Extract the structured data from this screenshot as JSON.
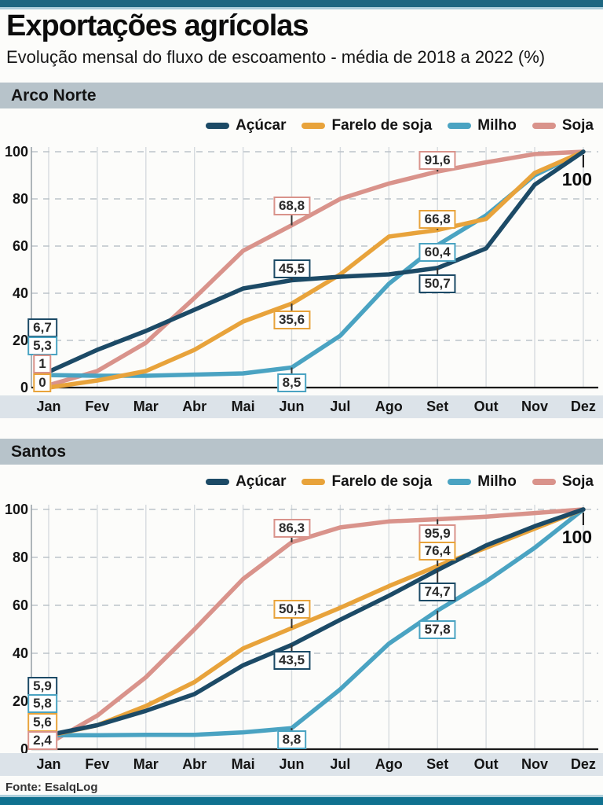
{
  "page": {
    "title": "Exportações agrícolas",
    "subtitle": "Evolução mensal do fluxo de escoamento - média de 2018 a 2022 (%)",
    "source": "Fonte: EsalqLog"
  },
  "colors": {
    "acucar": "#1c4a66",
    "farelo": "#e8a33b",
    "milho": "#4aa3c2",
    "soja": "#d9938b",
    "section_band": "#b7c3ca",
    "axis_band": "#dce3e9",
    "top_bar": "#1e6781",
    "accent_light": "#aecfdb",
    "bottom_bar": "#10718f",
    "grid_v": "#d6dbdf",
    "grid_h": "#bcc3c9",
    "baseline": "#1a1a1a"
  },
  "legend": [
    {
      "key": "acucar",
      "label": "Açúcar"
    },
    {
      "key": "farelo",
      "label": "Farelo de soja"
    },
    {
      "key": "milho",
      "label": "Milho"
    },
    {
      "key": "soja",
      "label": "Soja"
    }
  ],
  "y_ticks": [
    0,
    20,
    40,
    60,
    80,
    100
  ],
  "months": [
    "Jan",
    "Fev",
    "Mar",
    "Abr",
    "Mai",
    "Jun",
    "Jul",
    "Ago",
    "Set",
    "Out",
    "Nov",
    "Dez"
  ],
  "chart_data": [
    {
      "type": "line",
      "title": "Arco Norte",
      "categories": [
        "Jan",
        "Fev",
        "Mar",
        "Abr",
        "Mai",
        "Jun",
        "Jul",
        "Ago",
        "Set",
        "Out",
        "Nov",
        "Dez"
      ],
      "ylim": [
        0,
        100
      ],
      "grid": true,
      "legend_position": "top-right",
      "series": [
        {
          "key": "acucar",
          "name": "Açúcar",
          "values": [
            6.7,
            16,
            24,
            33,
            42,
            45.5,
            47,
            48,
            50.7,
            59,
            86,
            100
          ]
        },
        {
          "key": "farelo",
          "name": "Farelo de soja",
          "values": [
            0,
            3,
            7,
            16,
            28,
            35.6,
            48,
            64,
            66.8,
            71.5,
            91,
            100
          ]
        },
        {
          "key": "milho",
          "name": "Milho",
          "values": [
            5.3,
            5,
            5,
            5.5,
            6,
            8.5,
            22,
            44,
            60.4,
            73,
            90,
            100
          ]
        },
        {
          "key": "soja",
          "name": "Soja",
          "values": [
            1,
            7,
            19,
            38,
            58,
            68.8,
            80,
            86.5,
            91.6,
            95.5,
            99,
            100
          ]
        }
      ],
      "annotations": [
        {
          "text": "6,7",
          "series": "acucar",
          "month": 0,
          "box_v": 25.3,
          "dx": -8
        },
        {
          "text": "5,3",
          "series": "milho",
          "month": 0,
          "box_v": 17.7,
          "dx": -8
        },
        {
          "text": "1",
          "series": "soja",
          "month": 0,
          "box_v": 10,
          "dx": -8
        },
        {
          "text": "0",
          "series": "farelo",
          "month": 0,
          "box_v": 2,
          "dx": -8
        },
        {
          "text": "68,8",
          "series": "soja",
          "month": 5,
          "box_v": 77,
          "anchor_v": 68.8
        },
        {
          "text": "45,5",
          "series": "acucar",
          "month": 5,
          "box_v": 50.3,
          "anchor_v": 45.5
        },
        {
          "text": "35,6",
          "series": "farelo",
          "month": 5,
          "box_v": 28.7,
          "anchor_v": 35.6
        },
        {
          "text": "8,5",
          "series": "milho",
          "month": 5,
          "box_v": 2,
          "anchor_v": 8.5
        },
        {
          "text": "91,6",
          "series": "soja",
          "month": 8,
          "box_v": 96.3,
          "anchor_v": 91.6
        },
        {
          "text": "66,8",
          "series": "farelo",
          "month": 8,
          "box_v": 71.5,
          "anchor_v": 66.8
        },
        {
          "text": "60,4",
          "series": "milho",
          "month": 8,
          "box_v": 57.5,
          "anchor_v": 60.4
        },
        {
          "text": "50,7",
          "series": "acucar",
          "month": 8,
          "box_v": 44,
          "anchor_v": 50.7
        }
      ],
      "end_label": "100"
    },
    {
      "type": "line",
      "title": "Santos",
      "categories": [
        "Jan",
        "Fev",
        "Mar",
        "Abr",
        "Mai",
        "Jun",
        "Jul",
        "Ago",
        "Set",
        "Out",
        "Nov",
        "Dez"
      ],
      "ylim": [
        0,
        100
      ],
      "grid": true,
      "legend_position": "top-right",
      "series": [
        {
          "key": "acucar",
          "name": "Açúcar",
          "values": [
            5.9,
            10,
            16,
            23,
            35,
            43.5,
            54,
            64,
            74.7,
            85,
            93,
            100
          ]
        },
        {
          "key": "farelo",
          "name": "Farelo de soja",
          "values": [
            5.6,
            10,
            18,
            28,
            42,
            50.5,
            59,
            68,
            76.4,
            84,
            92,
            100
          ]
        },
        {
          "key": "milho",
          "name": "Milho",
          "values": [
            5.8,
            5.8,
            6,
            6,
            7,
            8.8,
            25,
            44,
            57.8,
            70,
            84,
            100
          ]
        },
        {
          "key": "soja",
          "name": "Soja",
          "values": [
            2.4,
            14,
            30,
            50,
            71,
            86.3,
            92.5,
            95,
            95.9,
            97,
            98.5,
            100
          ]
        }
      ],
      "annotations": [
        {
          "text": "5,9",
          "series": "acucar",
          "month": 0,
          "box_v": 26.2,
          "dx": -8
        },
        {
          "text": "5,8",
          "series": "milho",
          "month": 0,
          "box_v": 19,
          "dx": -8
        },
        {
          "text": "5,6",
          "series": "farelo",
          "month": 0,
          "box_v": 11.1,
          "dx": -8
        },
        {
          "text": "2,4",
          "series": "soja",
          "month": 0,
          "box_v": 3.6,
          "dx": -8
        },
        {
          "text": "86,3",
          "series": "soja",
          "month": 5,
          "box_v": 92,
          "anchor_v": 86.3
        },
        {
          "text": "50,5",
          "series": "farelo",
          "month": 5,
          "box_v": 58.5,
          "anchor_v": 50.5
        },
        {
          "text": "43,5",
          "series": "acucar",
          "month": 5,
          "box_v": 37,
          "anchor_v": 43.5
        },
        {
          "text": "8,8",
          "series": "milho",
          "month": 5,
          "box_v": 4,
          "anchor_v": 8.8
        },
        {
          "text": "95,9",
          "series": "soja",
          "month": 8,
          "box_v": 90,
          "anchor_v": 95.9
        },
        {
          "text": "76,4",
          "series": "farelo",
          "month": 8,
          "box_v": 82.5,
          "anchor_v": 76.4
        },
        {
          "text": "74,7",
          "series": "acucar",
          "month": 8,
          "box_v": 65.5,
          "anchor_v": 74.7
        },
        {
          "text": "57,8",
          "series": "milho",
          "month": 8,
          "box_v": 50,
          "anchor_v": 57.8
        }
      ],
      "end_label": "100"
    }
  ]
}
